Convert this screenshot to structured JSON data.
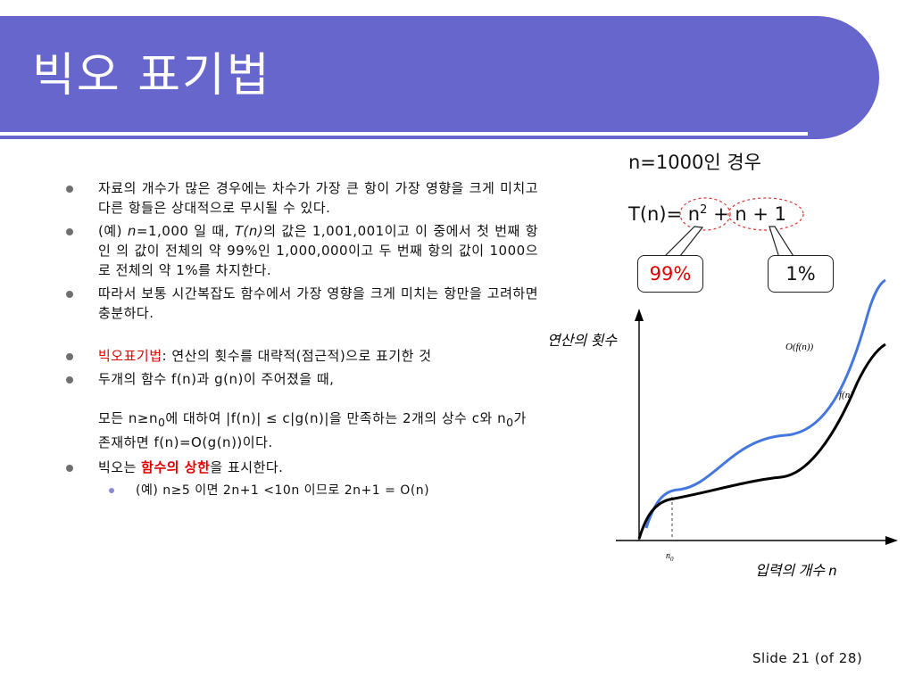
{
  "title": "빅오 표기법",
  "bullets": {
    "b1": "자료의 개수가 많은 경우에는 차수가 가장 큰 항이 가장 영향을 크게 미치고 다른 항들은 상대적으로 무시될 수 있다.",
    "b2": {
      "p1": "(예) ",
      "n_var": "n",
      "p2": "=1,000 일 때, ",
      "tn": "T(n)",
      "p3": "의 값은 1,001,001이고 이 중에서 첫 번째 항인  의 값이 전체의 약 99%인 1,000,000이고 두 번째 항의 값이 1000으로 전체의 약 1%를 차지한다."
    },
    "b3": "따라서 보통 시간복잡도 함수에서 가장 영향을 크게 미치는 항만을 고려하면 충분하다.",
    "b4": {
      "red": "빅오표기법",
      "rest": ": 연산의 횟수를 대략적(점근적)으로 표기한 것"
    },
    "b5": "두개의 함수 f(n)과 g(n)이 주어졌을 때,",
    "b5_cont": {
      "p1": "모든 n≥n",
      "sub1": "0",
      "p2": "에 대하여    |f(n)| ≤ c|g(n)|을 만족하는 2개의 상수 c와 n",
      "sub2": "0",
      "p3": "가 존재하면 f(n)=O(g(n))이다."
    },
    "b6": {
      "p1": "빅오는 ",
      "red": "함수의 상한",
      "p2": "을 표시한다."
    },
    "sub1": "(예) n≥5 이면 2n+1 <10n 이므로 2n+1 = O(n)"
  },
  "right_panel": {
    "heading": "n=1000인 경우",
    "formula": {
      "p1": "T(n)= n",
      "sup": "2",
      "p2": " + n + 1"
    },
    "callout_left": "99%",
    "callout_right": "1%"
  },
  "graph": {
    "y_axis_label": "연산의 횟수",
    "x_axis_label": "입력의 개수 n",
    "upper_curve_label": "O(f(n))",
    "lower_curve_label": "f(n)",
    "tick_label": "n",
    "tick_label_sub": "0",
    "upper_color": "#4477dd",
    "lower_color": "#000000"
  },
  "footer": "Slide  21 (of  28)",
  "colors": {
    "title_bg": "#6666cc",
    "accent_red": "#dd0000"
  }
}
